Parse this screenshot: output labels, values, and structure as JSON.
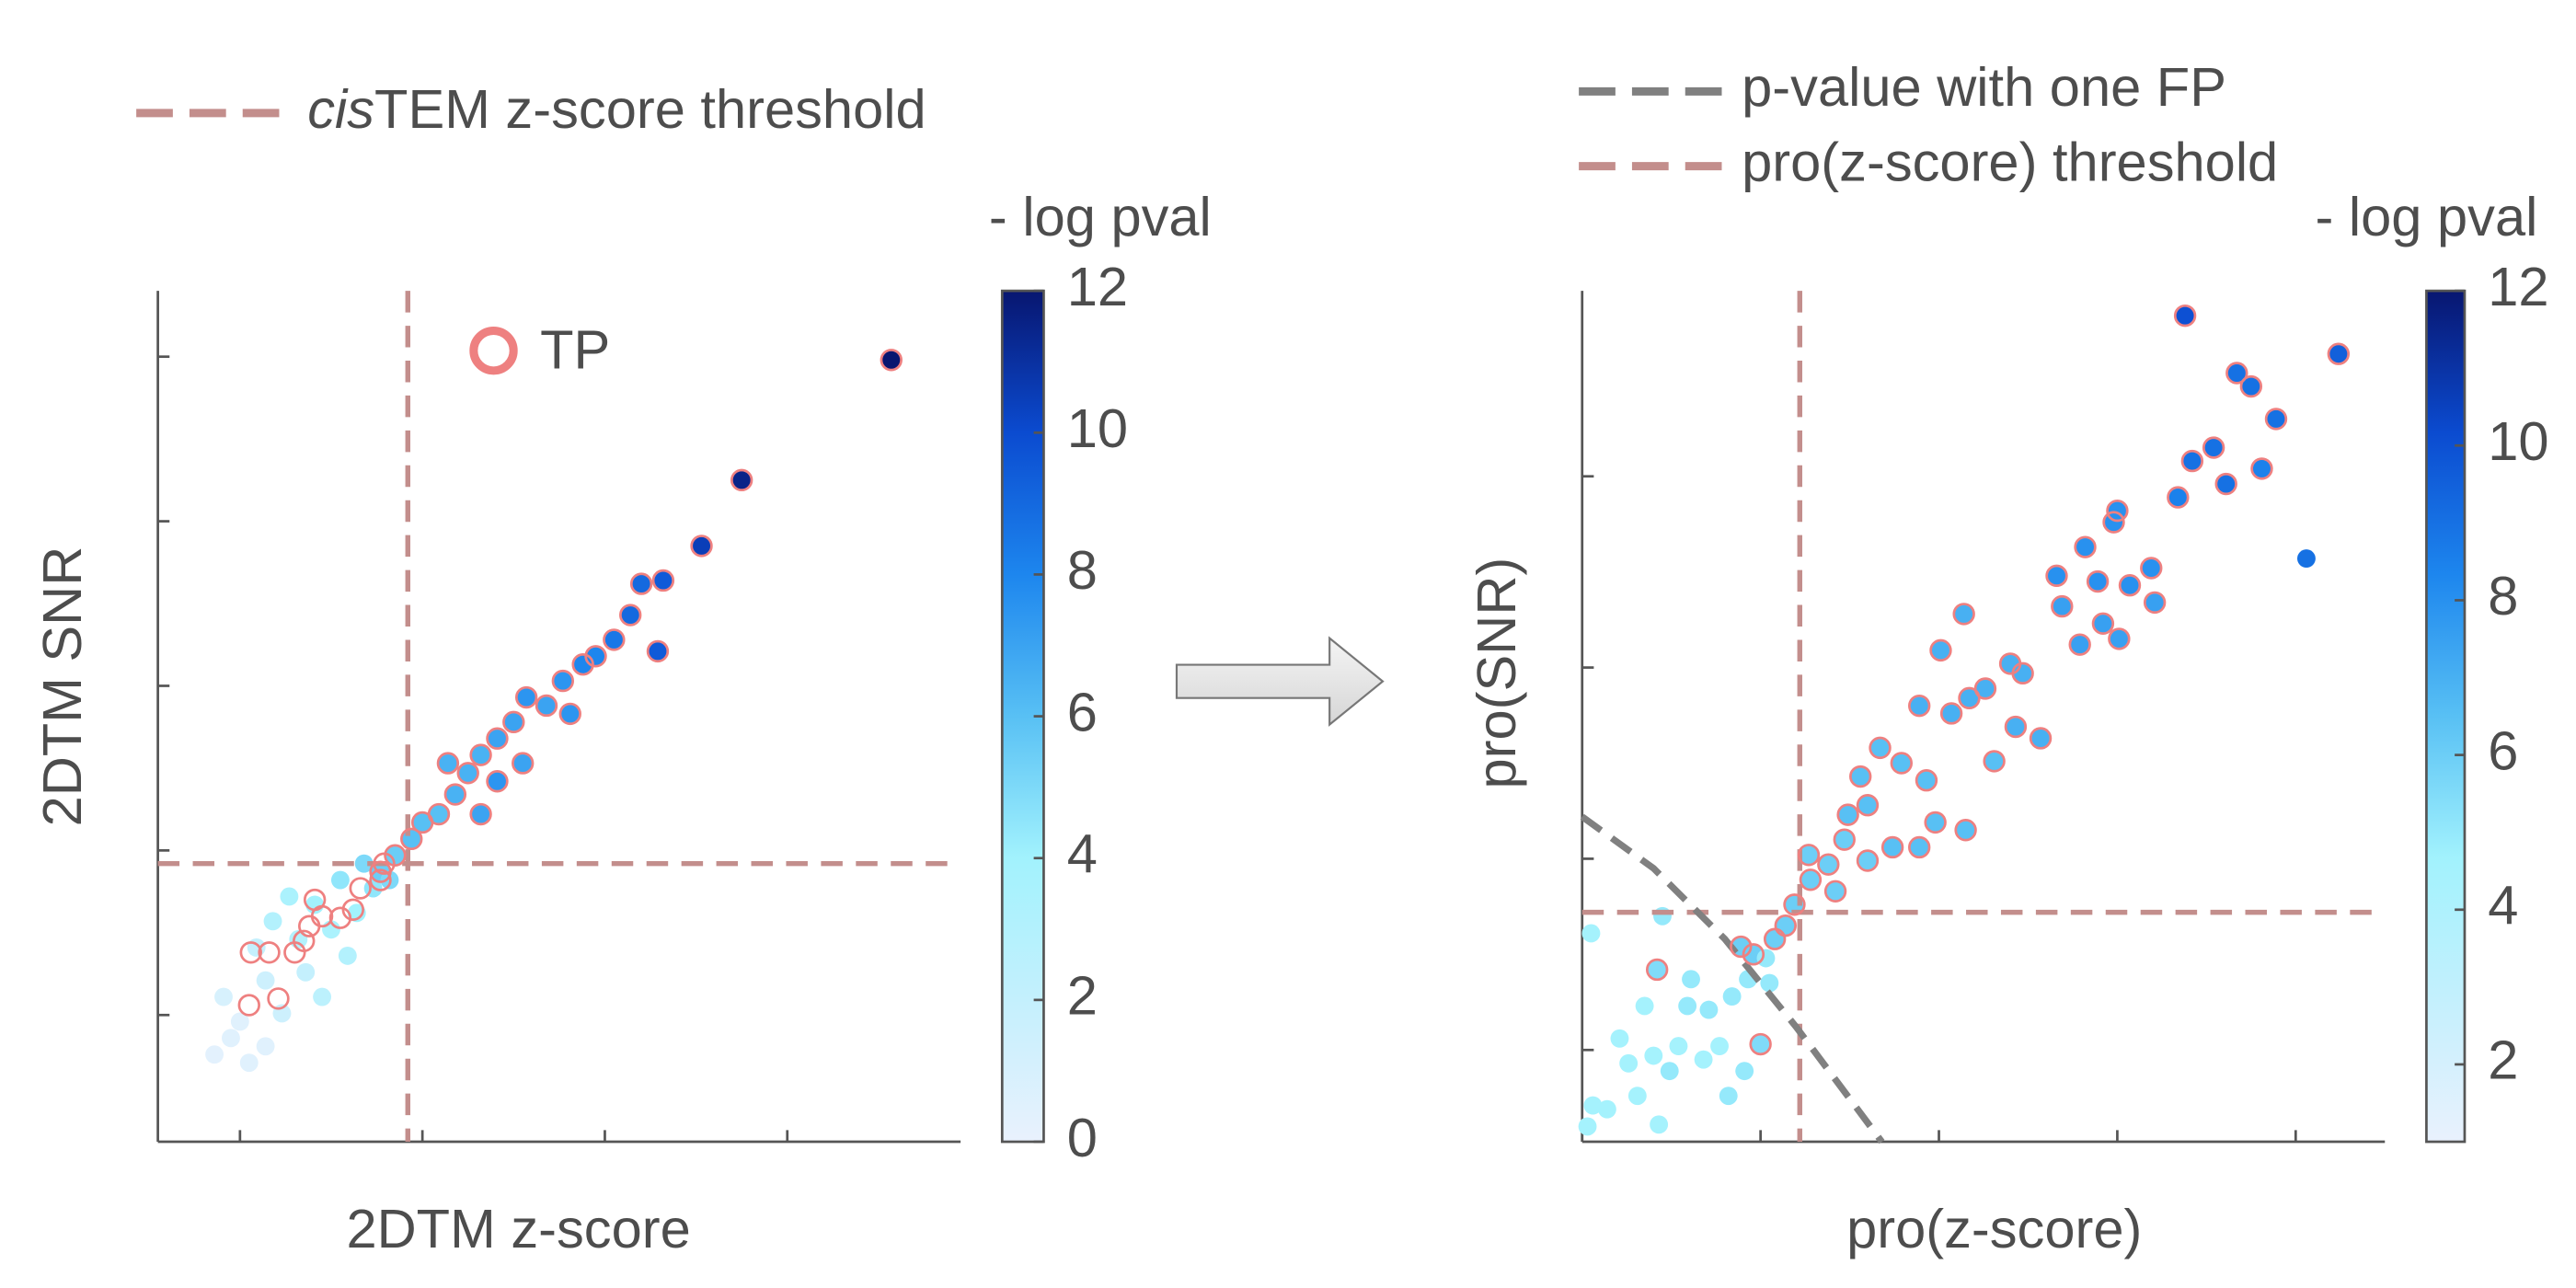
{
  "chart_data": [
    {
      "type": "scatter",
      "xlabel": "2DTM z-score",
      "ylabel": "2DTM SNR",
      "xlim": [
        -0.45,
        3.95
      ],
      "ylim": [
        -0.77,
        4.4
      ],
      "xticks": [
        0,
        1,
        2,
        3
      ],
      "yticks": [
        0,
        1,
        2,
        3,
        4
      ],
      "tick_labels": false,
      "thresholds": {
        "x": 0.92,
        "y": 0.92,
        "color": "#c38e8c",
        "label": [
          {
            "text": "cis",
            "italic": true
          },
          {
            "text": "TEM z-score threshold",
            "italic": false
          }
        ]
      },
      "points": {
        "x": [
          3.57,
          2.75,
          2.53,
          2.32,
          2.2,
          2.14,
          2.05,
          2.29,
          1.88,
          1.77,
          1.68,
          1.57,
          1.5,
          1.41,
          1.32,
          1.25,
          1.41,
          1.18,
          1.09,
          1.0,
          1.32,
          0.94,
          0.85,
          0.77,
          1.95,
          1.55,
          1.14,
          1.81,
          -0.05,
          0.05,
          -0.09,
          0.14,
          0.09,
          0.18,
          0.27,
          0.41,
          0.5,
          0.64,
          0.73,
          0.59,
          0.36,
          0.23,
          0.0,
          0.45,
          0.32,
          0.55,
          0.82,
          0.14,
          -0.14,
          0.68
        ],
        "y": [
          3.98,
          3.25,
          2.85,
          2.64,
          2.62,
          2.43,
          2.28,
          2.21,
          2.13,
          2.03,
          1.88,
          1.93,
          1.78,
          1.68,
          1.58,
          1.47,
          1.42,
          1.34,
          1.22,
          1.17,
          1.22,
          1.07,
          0.97,
          0.87,
          2.18,
          1.53,
          1.53,
          1.83,
          -0.14,
          -0.29,
          0.11,
          0.21,
          0.41,
          0.57,
          0.72,
          0.67,
          0.52,
          0.62,
          0.77,
          0.36,
          0.26,
          0.01,
          -0.04,
          0.11,
          0.46,
          0.82,
          0.82,
          -0.19,
          -0.24,
          0.92
        ],
        "c": [
          12,
          11.5,
          10.5,
          9.5,
          9,
          9,
          8.5,
          9.5,
          8,
          7.5,
          7,
          7.5,
          7,
          7,
          6.5,
          6.5,
          7.5,
          6.5,
          6,
          6,
          7,
          6,
          5.5,
          5.5,
          8,
          7,
          6.5,
          7.5,
          0.5,
          0.5,
          1,
          1.5,
          2,
          3,
          3.5,
          4,
          3.5,
          4,
          4.5,
          3,
          2,
          1.5,
          0.5,
          2.5,
          3,
          4.5,
          5,
          0.5,
          0.3,
          5
        ]
      },
      "tp": {
        "name": "TP",
        "color": "#ee8080",
        "x": [
          3.57,
          2.75,
          2.53,
          2.32,
          2.2,
          2.14,
          2.05,
          2.29,
          1.88,
          1.77,
          1.68,
          1.57,
          1.5,
          1.41,
          1.32,
          1.25,
          1.41,
          1.18,
          1.09,
          1.0,
          1.32,
          0.94,
          0.85,
          0.77,
          1.95,
          1.55,
          1.14,
          1.81,
          0.06,
          0.16,
          0.05,
          0.21,
          0.3,
          0.35,
          0.38,
          0.45,
          0.55,
          0.62,
          0.41,
          0.66,
          0.77,
          0.79
        ],
        "y": [
          3.98,
          3.25,
          2.85,
          2.64,
          2.62,
          2.43,
          2.28,
          2.21,
          2.13,
          2.03,
          1.88,
          1.93,
          1.78,
          1.68,
          1.58,
          1.47,
          1.42,
          1.34,
          1.22,
          1.17,
          1.22,
          1.07,
          0.97,
          0.87,
          2.18,
          1.53,
          1.53,
          1.83,
          0.38,
          0.38,
          0.06,
          0.1,
          0.38,
          0.45,
          0.54,
          0.6,
          0.59,
          0.64,
          0.7,
          0.77,
          0.82,
          0.92
        ]
      },
      "colorbar_label": "- log pval",
      "clim": [
        0,
        12
      ],
      "cticks": [
        0,
        2,
        4,
        6,
        8,
        10,
        12
      ],
      "colormap": [
        "#e9f1fd",
        "#c4f0fd",
        "#a2f2fd",
        "#58c0f4",
        "#1d86ee",
        "#0b4bd0",
        "#081670"
      ]
    },
    {
      "type": "scatter",
      "xlabel": "pro(z-score)",
      "ylabel": "pro(SNR)",
      "xlim": [
        0,
        4.5
      ],
      "ylim": [
        -0.48,
        3.97
      ],
      "xticks": [
        0,
        1,
        2,
        3,
        4
      ],
      "yticks": [
        0,
        1,
        2,
        3
      ],
      "tick_labels": false,
      "thresholds": {
        "x": 1.22,
        "y": 0.72,
        "color": "#c38e8c",
        "label": [
          {
            "text": "pro(z-score) threshold",
            "italic": false
          }
        ]
      },
      "lines": [
        {
          "name": "p-value with one FP",
          "color": "#808080",
          "x": [
            0,
            0.4,
            0.8,
            1.2,
            1.68
          ],
          "y": [
            1.22,
            0.95,
            0.58,
            0.12,
            -0.48
          ]
        }
      ],
      "points": {
        "x": [
          3.38,
          4.24,
          3.67,
          3.75,
          3.89,
          3.54,
          3.42,
          3.61,
          3.81,
          3.34,
          3.0,
          2.98,
          2.82,
          2.66,
          2.89,
          3.07,
          3.19,
          2.69,
          2.92,
          3.21,
          3.01,
          2.79,
          2.14,
          2.01,
          2.4,
          2.47,
          2.26,
          1.89,
          2.07,
          2.17,
          2.43,
          2.57,
          1.67,
          1.79,
          1.93,
          1.56,
          2.31,
          1.6,
          2.15,
          1.98,
          1.49,
          1.74,
          1.89,
          1.47,
          1.6,
          1.38,
          1.28,
          1.42,
          1.27,
          1.19,
          1.14,
          1.08,
          0.96,
          0.89,
          0.42,
          1.0,
          4.06,
          0.05,
          0.45,
          0.35,
          0.59,
          0.71,
          0.21,
          0.4,
          0.49,
          0.31,
          0.14,
          0.06,
          0.43,
          0.82,
          0.91,
          0.77,
          0.68,
          0.61,
          0.84,
          0.93,
          1.05,
          1.03,
          0.26,
          0.54,
          0.03
        ],
        "y": [
          3.84,
          3.64,
          3.54,
          3.47,
          3.3,
          3.15,
          3.08,
          2.96,
          3.04,
          2.89,
          2.82,
          2.76,
          2.63,
          2.48,
          2.45,
          2.43,
          2.52,
          2.32,
          2.23,
          2.34,
          2.15,
          2.12,
          2.28,
          2.09,
          2.02,
          1.97,
          1.89,
          1.8,
          1.76,
          1.84,
          1.69,
          1.63,
          1.58,
          1.5,
          1.41,
          1.43,
          1.51,
          1.28,
          1.15,
          1.19,
          1.23,
          1.06,
          1.06,
          1.1,
          0.99,
          0.97,
          0.89,
          0.83,
          1.02,
          0.76,
          0.65,
          0.58,
          0.5,
          0.54,
          0.42,
          0.03,
          2.57,
          0.61,
          0.7,
          0.23,
          0.23,
          0.21,
          0.06,
          -0.03,
          -0.11,
          -0.24,
          -0.31,
          -0.29,
          -0.39,
          -0.24,
          -0.11,
          0.02,
          -0.05,
          0.37,
          0.28,
          0.37,
          0.35,
          0.48,
          -0.07,
          0.02,
          -0.4
        ],
        "c": [
          10,
          9.5,
          9,
          9,
          9,
          9,
          9,
          9,
          8.5,
          8.5,
          8,
          8,
          8,
          8,
          8,
          8,
          8,
          7.5,
          7.5,
          7.5,
          7.5,
          7.5,
          7,
          7,
          7,
          7,
          7,
          7,
          7,
          7,
          7,
          7,
          6.5,
          6.5,
          6.5,
          6.5,
          6.5,
          6.5,
          6.5,
          6.5,
          6.5,
          6.5,
          6.5,
          6,
          6,
          6,
          6,
          6,
          6,
          6,
          6,
          6,
          6,
          6,
          5.5,
          5.5,
          9,
          4.5,
          5,
          4.5,
          5,
          5,
          4.5,
          4.5,
          5,
          4.5,
          4.5,
          4.5,
          4.5,
          5,
          5,
          4.5,
          4.5,
          5,
          5,
          5,
          5,
          5,
          4.5,
          4.5,
          4.5
        ]
      },
      "tp": {
        "color": "#ee8080",
        "x": [
          3.38,
          4.24,
          3.67,
          3.75,
          3.89,
          3.54,
          3.42,
          3.61,
          3.81,
          3.34,
          3.0,
          2.98,
          2.82,
          2.66,
          2.89,
          3.07,
          3.19,
          2.69,
          2.92,
          3.21,
          3.01,
          2.79,
          2.14,
          2.01,
          2.4,
          2.47,
          2.26,
          1.89,
          2.07,
          2.17,
          2.43,
          2.57,
          1.67,
          1.79,
          1.93,
          1.56,
          2.31,
          1.6,
          2.15,
          1.98,
          1.49,
          1.74,
          1.89,
          1.47,
          1.6,
          1.38,
          1.28,
          1.42,
          1.27,
          1.19,
          1.14,
          1.08,
          0.96,
          0.89,
          0.42,
          1.0
        ],
        "y": [
          3.84,
          3.64,
          3.54,
          3.47,
          3.3,
          3.15,
          3.08,
          2.96,
          3.04,
          2.89,
          2.82,
          2.76,
          2.63,
          2.48,
          2.45,
          2.43,
          2.52,
          2.32,
          2.23,
          2.34,
          2.15,
          2.12,
          2.28,
          2.09,
          2.02,
          1.97,
          1.89,
          1.8,
          1.76,
          1.84,
          1.69,
          1.63,
          1.58,
          1.5,
          1.41,
          1.43,
          1.51,
          1.28,
          1.15,
          1.19,
          1.23,
          1.06,
          1.06,
          1.1,
          0.99,
          0.97,
          0.89,
          0.83,
          1.02,
          0.76,
          0.65,
          0.58,
          0.5,
          0.54,
          0.42,
          0.03
        ]
      },
      "colorbar_label": "- log pval",
      "clim": [
        1,
        12
      ],
      "cticks": [
        2,
        4,
        6,
        8,
        10,
        12
      ],
      "colormap": [
        "#e9f1fd",
        "#c4f0fd",
        "#a2f2fd",
        "#58c0f4",
        "#1d86ee",
        "#0b4bd0",
        "#081670"
      ]
    }
  ]
}
